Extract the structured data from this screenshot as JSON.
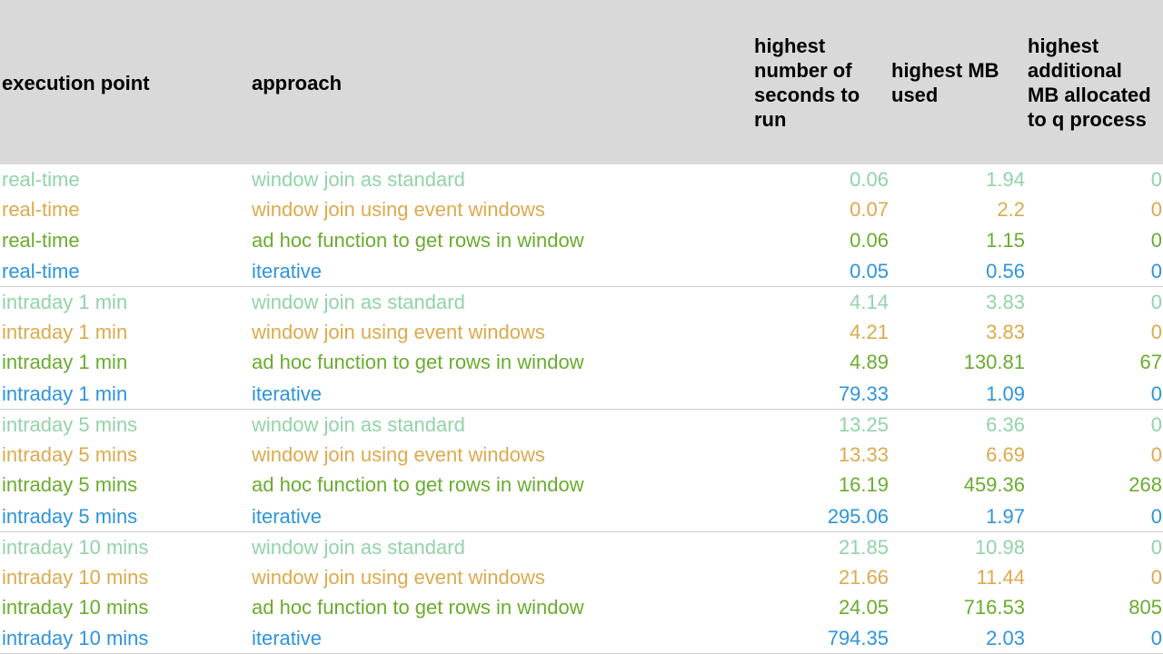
{
  "header": {
    "execution_point": "execution point",
    "approach": "approach",
    "seconds": "highest\nnumber of\nseconds to\nrun",
    "mb_used": "highest MB\nused",
    "additional_mb": "highest\nadditional\nMB allocated\nto q process"
  },
  "colors": {
    "window join as standard": "#92d3a8",
    "window join using event windows": "#dcaa4e",
    "ad hoc function to get rows in window": "#6aac2f",
    "iterative": "#2f94dc"
  },
  "groups": [
    {
      "rows": [
        {
          "execution_point": "real-time",
          "approach": "window join as standard",
          "seconds": "0.06",
          "mb_used": "1.94",
          "additional_mb": "0"
        },
        {
          "execution_point": "real-time",
          "approach": "window join using event windows",
          "seconds": "0.07",
          "mb_used": "2.2",
          "additional_mb": "0"
        },
        {
          "execution_point": "real-time",
          "approach": "ad hoc function to get rows in window",
          "seconds": "0.06",
          "mb_used": "1.15",
          "additional_mb": "0"
        },
        {
          "execution_point": "real-time",
          "approach": "iterative",
          "seconds": "0.05",
          "mb_used": "0.56",
          "additional_mb": "0"
        }
      ]
    },
    {
      "rows": [
        {
          "execution_point": "intraday 1 min",
          "approach": "window join as standard",
          "seconds": "4.14",
          "mb_used": "3.83",
          "additional_mb": "0"
        },
        {
          "execution_point": "intraday 1 min",
          "approach": "window join using event windows",
          "seconds": "4.21",
          "mb_used": "3.83",
          "additional_mb": "0"
        },
        {
          "execution_point": "intraday 1 min",
          "approach": "ad hoc function to get rows in window",
          "seconds": "4.89",
          "mb_used": "130.81",
          "additional_mb": "67"
        },
        {
          "execution_point": "intraday 1 min",
          "approach": "iterative",
          "seconds": "79.33",
          "mb_used": "1.09",
          "additional_mb": "0"
        }
      ]
    },
    {
      "rows": [
        {
          "execution_point": "intraday 5 mins",
          "approach": "window join as standard",
          "seconds": "13.25",
          "mb_used": "6.36",
          "additional_mb": "0"
        },
        {
          "execution_point": "intraday 5 mins",
          "approach": "window join using event windows",
          "seconds": "13.33",
          "mb_used": "6.69",
          "additional_mb": "0"
        },
        {
          "execution_point": "intraday 5 mins",
          "approach": "ad hoc function to get rows in window",
          "seconds": "16.19",
          "mb_used": "459.36",
          "additional_mb": "268"
        },
        {
          "execution_point": "intraday 5 mins",
          "approach": "iterative",
          "seconds": "295.06",
          "mb_used": "1.97",
          "additional_mb": "0"
        }
      ]
    },
    {
      "rows": [
        {
          "execution_point": "intraday 10 mins",
          "approach": "window join as standard",
          "seconds": "21.85",
          "mb_used": "10.98",
          "additional_mb": "0"
        },
        {
          "execution_point": "intraday 10 mins",
          "approach": "window join using event windows",
          "seconds": "21.66",
          "mb_used": "11.44",
          "additional_mb": "0"
        },
        {
          "execution_point": "intraday 10 mins",
          "approach": "ad hoc function to get rows in window",
          "seconds": "24.05",
          "mb_used": "716.53",
          "additional_mb": "805"
        },
        {
          "execution_point": "intraday 10 mins",
          "approach": "iterative",
          "seconds": "794.35",
          "mb_used": "2.03",
          "additional_mb": "0"
        }
      ]
    }
  ]
}
